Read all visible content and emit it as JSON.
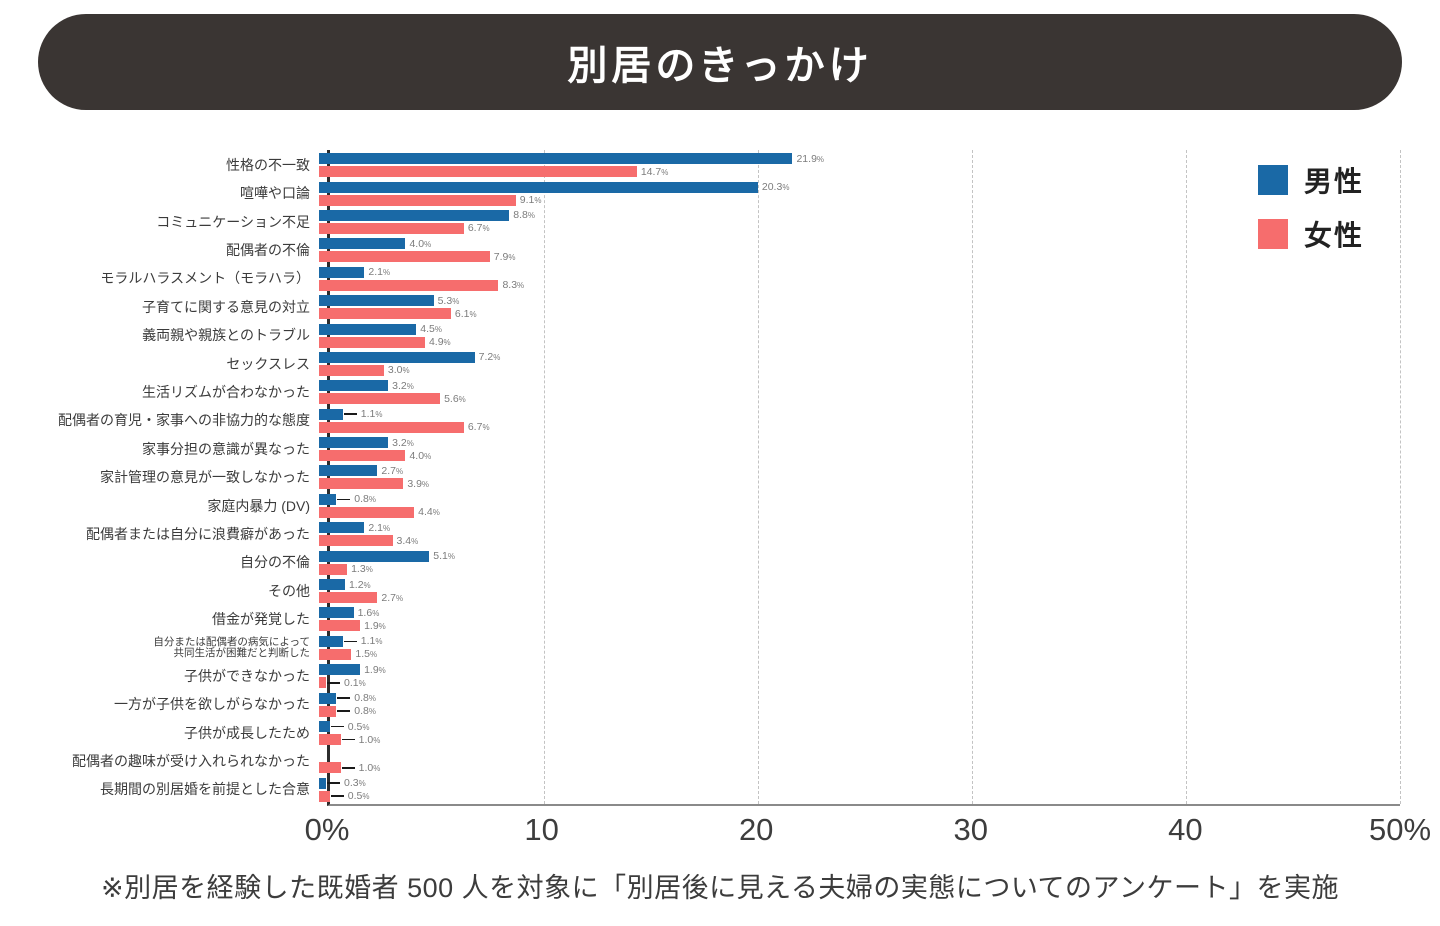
{
  "title": "別居のきっかけ",
  "legend": {
    "male": "男性",
    "female": "女性"
  },
  "footnote": "※別居を経験した既婚者 500 人を対象に「別居後に見える夫婦の実態についてのアンケート」を実施",
  "colors": {
    "male": "#1a69a6",
    "female": "#f66d6d",
    "banner": "#3a3533"
  },
  "chart_data": {
    "type": "bar",
    "orientation": "horizontal",
    "unit": "%",
    "xlim": [
      0,
      50
    ],
    "grid": "dashed-vertical",
    "legend_position": "top-right",
    "x_ticks": [
      {
        "label": "0%",
        "value": 0
      },
      {
        "label": "10",
        "value": 10
      },
      {
        "label": "20",
        "value": 20
      },
      {
        "label": "30",
        "value": 30
      },
      {
        "label": "40",
        "value": 40
      },
      {
        "label": "50%",
        "value": 50
      }
    ],
    "categories": [
      "性格の不一致",
      "喧嘩や口論",
      "コミュニケーション不足",
      "配偶者の不倫",
      "モラルハラスメント（モラハラ）",
      "子育てに関する意見の対立",
      "義両親や親族とのトラブル",
      "セックスレス",
      "生活リズムが合わなかった",
      "配偶者の育児・家事への非協力的な態度",
      "家事分担の意識が異なった",
      "家計管理の意見が一致しなかった",
      "家庭内暴力 (DV)",
      "配偶者または自分に浪費癖があった",
      "自分の不倫",
      "その他",
      "借金が発覚した",
      "自分または配偶者の病気によって\n共同生活が困難だと判断した",
      "子供ができなかった",
      "一方が子供を欲しがらなかった",
      "子供が成長したため",
      "配偶者の趣味が受け入れられなかった",
      "長期間の別居婚を前提とした合意"
    ],
    "series": [
      {
        "name": "男性",
        "values": [
          21.9,
          20.3,
          8.8,
          4.0,
          2.1,
          5.3,
          4.5,
          7.2,
          3.2,
          1.1,
          3.2,
          2.7,
          0.8,
          2.1,
          5.1,
          1.2,
          1.6,
          1.1,
          1.9,
          0.8,
          0.5,
          0,
          0.3
        ]
      },
      {
        "name": "女性",
        "values": [
          14.7,
          9.1,
          6.7,
          7.9,
          8.3,
          6.1,
          4.9,
          3.0,
          5.6,
          6.7,
          4.0,
          3.9,
          4.4,
          3.4,
          1.3,
          2.7,
          1.9,
          1.5,
          0.1,
          0.8,
          1.0,
          1.0,
          0.5
        ]
      }
    ]
  }
}
